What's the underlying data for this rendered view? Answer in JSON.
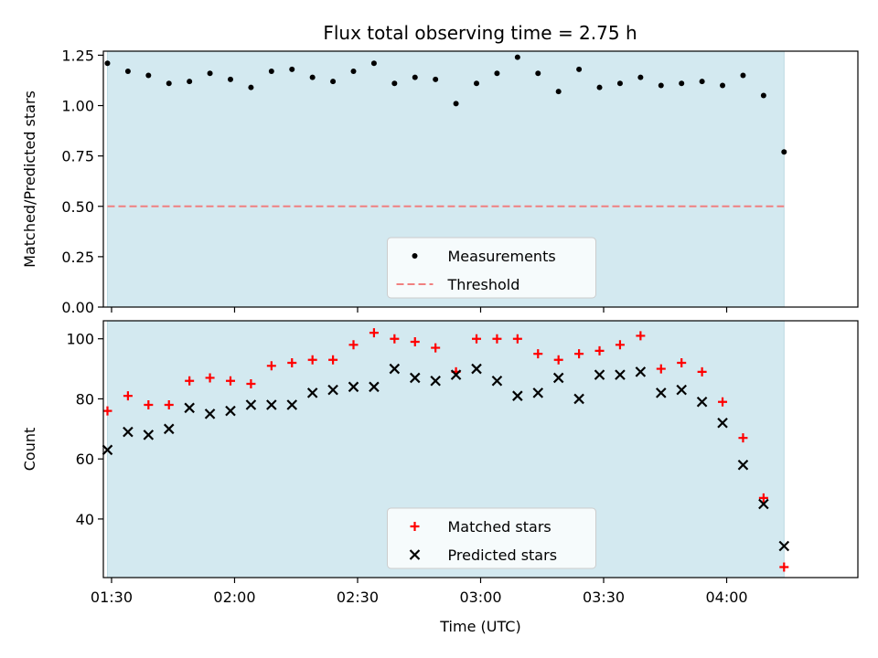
{
  "title": "Flux total observing time = 2.75 h",
  "colors": {
    "shade": "#d3e9f0",
    "measurement": "#000000",
    "threshold": "#f08080",
    "matched": "#ff0000",
    "predicted": "#000000"
  },
  "chart_data": [
    {
      "type": "scatter",
      "ylabel": "Matched/Predicted stars",
      "xlabel": "",
      "xlim": [
        "01:28",
        "04:32"
      ],
      "ylim": [
        0,
        1.27
      ],
      "y_ticks": [
        0.0,
        0.25,
        0.5,
        0.75,
        1.0,
        1.25
      ],
      "y_tick_labels": [
        "0.00",
        "0.25",
        "0.50",
        "0.75",
        "1.00",
        "1.25"
      ],
      "shaded_span": [
        "01:29",
        "04:14"
      ],
      "legend": "lower center",
      "grid": false,
      "series": [
        {
          "name": "Measurements",
          "marker": "dot",
          "x": [
            "01:29",
            "01:34",
            "01:39",
            "01:44",
            "01:49",
            "01:54",
            "01:59",
            "02:04",
            "02:09",
            "02:14",
            "02:19",
            "02:24",
            "02:29",
            "02:34",
            "02:39",
            "02:44",
            "02:49",
            "02:54",
            "02:59",
            "03:04",
            "03:09",
            "03:14",
            "03:19",
            "03:24",
            "03:29",
            "03:34",
            "03:39",
            "03:44",
            "03:49",
            "03:54",
            "03:59",
            "04:04",
            "04:09",
            "04:14"
          ],
          "y": [
            1.21,
            1.17,
            1.15,
            1.11,
            1.12,
            1.16,
            1.13,
            1.09,
            1.17,
            1.18,
            1.14,
            1.12,
            1.17,
            1.21,
            1.11,
            1.14,
            1.13,
            1.01,
            1.11,
            1.16,
            1.24,
            1.16,
            1.07,
            1.18,
            1.09,
            1.11,
            1.14,
            1.1,
            1.11,
            1.12,
            1.1,
            1.15,
            1.05,
            0.77
          ]
        },
        {
          "name": "Threshold",
          "line": "dashed",
          "x": [
            "01:29",
            "04:14"
          ],
          "y": [
            0.5,
            0.5
          ]
        }
      ]
    },
    {
      "type": "scatter",
      "ylabel": "Count",
      "xlabel": "Time (UTC)",
      "xlim": [
        "01:28",
        "04:32"
      ],
      "ylim": [
        20.5,
        106
      ],
      "y_ticks": [
        40,
        60,
        80,
        100
      ],
      "y_tick_labels": [
        "40",
        "60",
        "80",
        "100"
      ],
      "x_ticks": [
        "01:30",
        "02:00",
        "02:30",
        "03:00",
        "03:30",
        "04:00"
      ],
      "x_tick_labels": [
        "01:30",
        "02:00",
        "02:30",
        "03:00",
        "03:30",
        "04:00"
      ],
      "shaded_span": [
        "01:29",
        "04:14"
      ],
      "legend": "lower center",
      "grid": false,
      "series": [
        {
          "name": "Matched stars",
          "marker": "plus",
          "x": [
            "01:29",
            "01:34",
            "01:39",
            "01:44",
            "01:49",
            "01:54",
            "01:59",
            "02:04",
            "02:09",
            "02:14",
            "02:19",
            "02:24",
            "02:29",
            "02:34",
            "02:39",
            "02:44",
            "02:49",
            "02:54",
            "02:59",
            "03:04",
            "03:09",
            "03:14",
            "03:19",
            "03:24",
            "03:29",
            "03:34",
            "03:39",
            "03:44",
            "03:49",
            "03:54",
            "03:59",
            "04:04",
            "04:09",
            "04:14"
          ],
          "y": [
            76,
            81,
            78,
            78,
            86,
            87,
            86,
            85,
            91,
            92,
            93,
            93,
            98,
            102,
            100,
            99,
            97,
            89,
            100,
            100,
            100,
            95,
            93,
            95,
            96,
            98,
            101,
            90,
            92,
            89,
            79,
            67,
            47,
            24
          ]
        },
        {
          "name": "Predicted stars",
          "marker": "x",
          "x": [
            "01:29",
            "01:34",
            "01:39",
            "01:44",
            "01:49",
            "01:54",
            "01:59",
            "02:04",
            "02:09",
            "02:14",
            "02:19",
            "02:24",
            "02:29",
            "02:34",
            "02:39",
            "02:44",
            "02:49",
            "02:54",
            "02:59",
            "03:04",
            "03:09",
            "03:14",
            "03:19",
            "03:24",
            "03:29",
            "03:34",
            "03:39",
            "03:44",
            "03:49",
            "03:54",
            "03:59",
            "04:04",
            "04:09",
            "04:14"
          ],
          "y": [
            63,
            69,
            68,
            70,
            77,
            75,
            76,
            78,
            78,
            78,
            82,
            83,
            84,
            84,
            90,
            87,
            86,
            88,
            90,
            86,
            81,
            82,
            87,
            80,
            88,
            88,
            89,
            82,
            83,
            79,
            72,
            58,
            45,
            31
          ]
        }
      ]
    }
  ]
}
